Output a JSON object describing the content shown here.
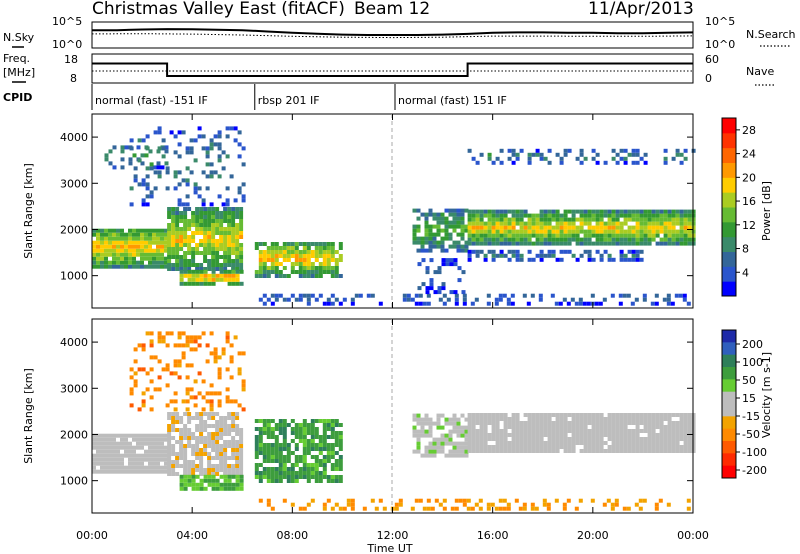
{
  "header": {
    "station": "Christmas Valley East (fitACF)",
    "beam": "Beam 12",
    "date": "11/Apr/2013"
  },
  "params": {
    "nsky_label": "N.Sky",
    "nsearch_label": "N.Search",
    "freq_label_line1": "Freq.",
    "freq_label_line2": "[MHz]",
    "nave_label": "Nave",
    "cpid_label": "CPID",
    "noise_ticks": [
      "10^5",
      "10^0"
    ],
    "freq_ticks": [
      "18",
      "8"
    ],
    "nave_ticks": [
      "60",
      "0"
    ]
  },
  "cpid_segments": [
    {
      "label": "normal (fast) -151 IF",
      "start_hour": 0
    },
    {
      "label": "rbsp 201 IF",
      "start_hour": 6.5
    },
    {
      "label": "normal (fast) 151 IF",
      "start_hour": 12.1
    }
  ],
  "axes": {
    "xlabel": "Time UT",
    "x_ticks": [
      "00:00",
      "04:00",
      "08:00",
      "12:00",
      "16:00",
      "20:00",
      "00:00"
    ],
    "x_tick_hours": [
      0,
      4,
      8,
      12,
      16,
      20,
      24
    ],
    "ylabel": "Slant Range [km]",
    "y_ticks": [
      "4000",
      "3000",
      "2000",
      "1000"
    ]
  },
  "colors": {
    "power_scale": [
      "#0000ff",
      "#2a55cc",
      "#336699",
      "#3a8a6a",
      "#339933",
      "#66bb33",
      "#aacc22",
      "#ffcc00",
      "#ff9900",
      "#ff6600",
      "#ff3300",
      "#ff0000"
    ],
    "velocity_scale": [
      "#1e2aa8",
      "#2f5fbd",
      "#2e7f5a",
      "#3d9d3d",
      "#66cc33",
      "#bdbdbd",
      "#bdbdbd",
      "#f3a300",
      "#ff8a00",
      "#ff5a00",
      "#ff2a00",
      "#ff0000"
    ]
  },
  "chart_data": [
    {
      "type": "line",
      "title": "N.Sky / N.Search",
      "x_unit": "hour UT",
      "ylim_labels": [
        "10^0",
        "10^5"
      ],
      "series": [
        {
          "name": "N.Sky",
          "x": [
            0,
            1,
            2,
            3,
            4,
            5,
            6,
            7,
            8,
            9,
            10,
            11,
            12,
            13,
            14,
            15,
            16,
            17,
            18,
            19,
            20,
            21,
            22,
            23,
            24
          ],
          "values": [
            0.72,
            0.72,
            0.75,
            0.77,
            0.76,
            0.74,
            0.72,
            0.66,
            0.6,
            0.56,
            0.52,
            0.5,
            0.5,
            0.5,
            0.52,
            0.55,
            0.6,
            0.62,
            0.62,
            0.6,
            0.6,
            0.58,
            0.58,
            0.6,
            0.62
          ]
        },
        {
          "name": "N.Search",
          "x": [
            0,
            2,
            4,
            6,
            8,
            10,
            12,
            14,
            16,
            18,
            20,
            22,
            24
          ],
          "values": [
            0.55,
            0.56,
            0.54,
            0.5,
            0.44,
            0.4,
            0.38,
            0.4,
            0.45,
            0.45,
            0.44,
            0.44,
            0.46
          ]
        }
      ]
    },
    {
      "type": "line",
      "title": "Freq. / Nave",
      "x_unit": "hour UT",
      "series": [
        {
          "name": "Freq. [MHz]",
          "x": [
            0,
            3,
            3,
            15,
            15,
            24
          ],
          "values": [
            15,
            15,
            10,
            10,
            15,
            15
          ]
        },
        {
          "name": "Nave",
          "x": [
            0,
            24
          ],
          "values": [
            24,
            24
          ]
        }
      ],
      "freq_ylim": [
        8,
        18
      ],
      "nave_ylim": [
        0,
        60
      ]
    },
    {
      "type": "heatmap",
      "title": "Power [dB]",
      "xlabel": "Time UT",
      "ylabel": "Slant Range [km]",
      "xlim": [
        0,
        24
      ],
      "ylim": [
        300,
        4500
      ],
      "colorbar_label": "Power [dB]",
      "colorbar_ticks": [
        "4",
        "8",
        "12",
        "16",
        "20",
        "24",
        "28"
      ],
      "regions": [
        {
          "t0": 0,
          "t1": 3,
          "r0": 1150,
          "r1": 2000,
          "power": 18,
          "density": 0.95
        },
        {
          "t0": 3,
          "t1": 6,
          "r0": 1100,
          "r1": 2400,
          "power": 17,
          "density": 0.9
        },
        {
          "t0": 3.5,
          "t1": 6,
          "r0": 780,
          "r1": 1050,
          "power": 20,
          "density": 0.9
        },
        {
          "t0": 6.5,
          "t1": 10,
          "r0": 950,
          "r1": 1700,
          "power": 18,
          "density": 0.85
        },
        {
          "t0": 0.5,
          "t1": 3,
          "r0": 3300,
          "r1": 3800,
          "power": 9,
          "density": 0.4
        },
        {
          "t0": 1.5,
          "t1": 6,
          "r0": 2500,
          "r1": 4200,
          "power": 8,
          "density": 0.25
        },
        {
          "t0": 12.8,
          "t1": 15,
          "r0": 1500,
          "r1": 2400,
          "power": 12,
          "density": 0.7
        },
        {
          "t0": 15,
          "t1": 24,
          "r0": 1650,
          "r1": 2350,
          "power": 17,
          "density": 0.95
        },
        {
          "t0": 15,
          "t1": 22,
          "r0": 1300,
          "r1": 1500,
          "power": 7,
          "density": 0.6
        },
        {
          "t0": 15,
          "t1": 24,
          "r0": 3400,
          "r1": 3700,
          "power": 8,
          "density": 0.35
        },
        {
          "t0": 6.5,
          "t1": 24,
          "r0": 350,
          "r1": 600,
          "power": 6,
          "density": 0.35
        },
        {
          "t0": 13,
          "t1": 14.8,
          "r0": 600,
          "r1": 1300,
          "power": 6,
          "density": 0.3
        }
      ]
    },
    {
      "type": "heatmap",
      "title": "Velocity [m s-1]",
      "xlabel": "Time UT",
      "ylabel": "Slant Range [km]",
      "xlim": [
        0,
        24
      ],
      "ylim": [
        300,
        4500
      ],
      "colorbar_label": "Velocity [m s-1]",
      "colorbar_ticks": [
        "200",
        "100",
        "50",
        "15",
        "-15",
        "-50",
        "-100",
        "-200"
      ],
      "regions": [
        {
          "t0": 0,
          "t1": 3,
          "r0": 1150,
          "r1": 2000,
          "velocity": 0,
          "density": 0.95
        },
        {
          "t0": 3,
          "t1": 6,
          "r0": 1100,
          "r1": 2400,
          "velocity": -5,
          "density": 0.8
        },
        {
          "t0": 3.5,
          "t1": 6,
          "r0": 780,
          "r1": 1050,
          "velocity": 30,
          "density": 0.85
        },
        {
          "t0": 6.5,
          "t1": 10,
          "r0": 950,
          "r1": 2300,
          "velocity": 40,
          "density": 0.75
        },
        {
          "t0": 12.8,
          "t1": 15,
          "r0": 1500,
          "r1": 2400,
          "velocity": 5,
          "density": 0.7
        },
        {
          "t0": 15,
          "t1": 24,
          "r0": 1600,
          "r1": 2400,
          "velocity": 0,
          "density": 0.95
        },
        {
          "t0": 1.5,
          "t1": 6,
          "r0": 2500,
          "r1": 4200,
          "velocity": -40,
          "density": 0.2
        },
        {
          "t0": 6.5,
          "t1": 24,
          "r0": 350,
          "r1": 600,
          "velocity": -30,
          "density": 0.35
        }
      ]
    }
  ]
}
